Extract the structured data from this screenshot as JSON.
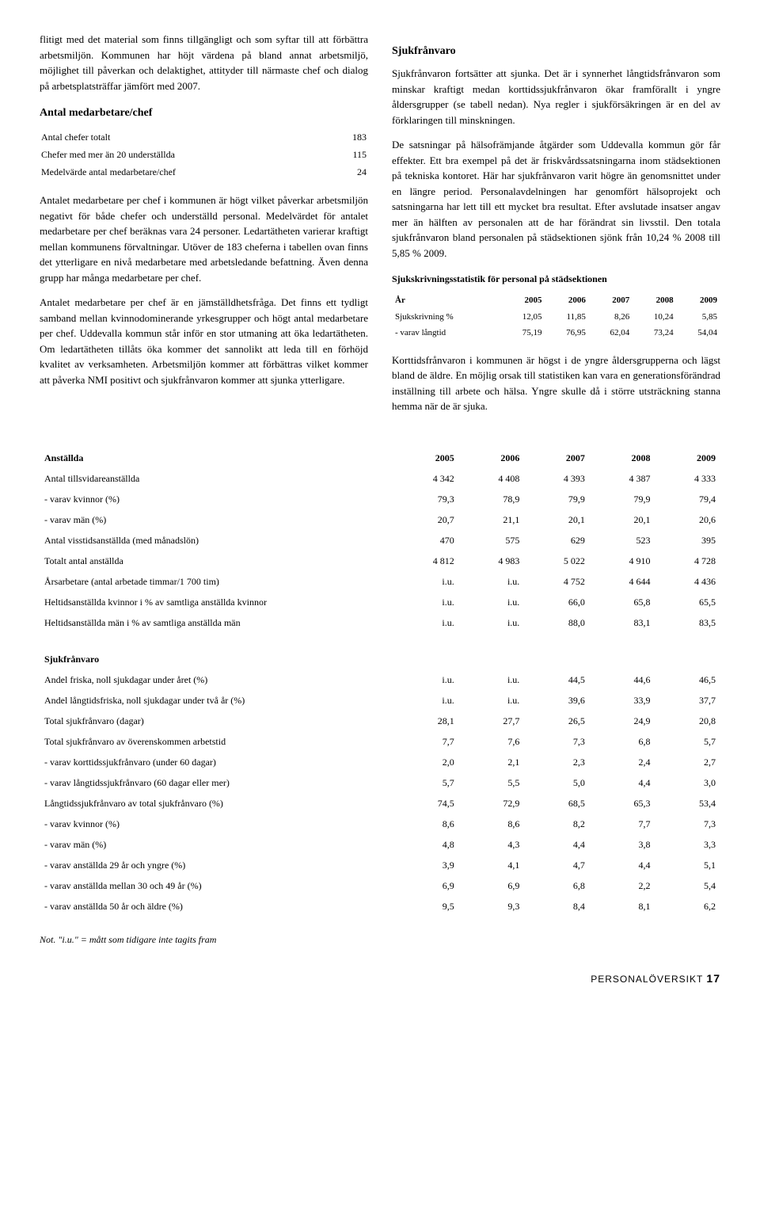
{
  "left": {
    "p1": "flitigt med det material som finns tillgängligt och som syftar till att förbättra arbetsmiljön. Kommunen har höjt värdena på bland annat arbetsmiljö, möjlighet till påverkan och delaktighet, attityder till närmaste chef och dialog på arbetsplatsträffar jämfört med 2007.",
    "h1": "Antal medarbetare/chef",
    "rows": [
      [
        "Antal chefer totalt",
        "183"
      ],
      [
        "Chefer med mer än 20 underställda",
        "115"
      ],
      [
        "Medelvärde antal medarbetare/chef",
        "24"
      ]
    ],
    "p2": "Antalet medarbetare per chef i kommunen är högt vilket påverkar arbetsmiljön negativt för både chefer och underställd personal. Medelvärdet för antalet medarbetare per chef beräknas vara 24 personer. Ledartätheten varierar kraftigt mellan kommunens förvaltningar. Utöver de 183 cheferna i tabellen ovan finns det ytterligare en nivå medarbetare med arbetsledande befattning. Även denna grupp har många medarbetare per chef.",
    "p3": "Antalet medarbetare per chef är en jämställdhetsfråga. Det finns ett tydligt samband mellan kvinnodominerande yrkesgrupper och högt antal medarbetare per chef. Uddevalla kommun står inför en stor utmaning att öka ledartätheten. Om ledartätheten tillåts öka kommer det sannolikt att leda till en förhöjd kvalitet av verksamheten. Arbetsmiljön kommer att förbättras vilket kommer att påverka NMI positivt och sjukfrånvaron kommer att sjunka ytterligare."
  },
  "right": {
    "h1": "Sjukfrånvaro",
    "p1": "Sjukfrånvaron fortsätter att sjunka. Det är i synnerhet långtidsfrånvaron som minskar kraftigt medan korttidssjukfrånvaron ökar framförallt i yngre åldersgrupper (se tabell nedan). Nya regler i sjukförsäkringen är en del av förklaringen till minskningen.",
    "p2": "De satsningar på hälsofrämjande åtgärder som Uddevalla kommun gör får effekter. Ett bra exempel på det är friskvårdssatsningarna inom städsektionen på tekniska kontoret. Här har sjukfrånvaron varit högre än genomsnittet under en längre period. Personalavdelningen har genomfört hälsoprojekt och satsningarna har lett till ett mycket bra resultat. Efter avslutade insatser angav mer än hälften av personalen att de har förändrat sin livsstil. Den totala sjukfrånvaron bland personalen på städsektionen sjönk från 10,24 % 2008 till 5,85 % 2009.",
    "h2": "Sjukskrivningsstatistik för personal på städsektionen",
    "stat_header": [
      "År",
      "2005",
      "2006",
      "2007",
      "2008",
      "2009"
    ],
    "stat_rows": [
      [
        "Sjukskrivning %",
        "12,05",
        "11,85",
        "8,26",
        "10,24",
        "5,85"
      ],
      [
        "- varav långtid",
        "75,19",
        "76,95",
        "62,04",
        "73,24",
        "54,04"
      ]
    ],
    "p3": "Korttidsfrånvaron i kommunen är högst i de yngre åldersgrupperna och lägst bland de äldre. En möjlig orsak till statistiken kan vara en generationsförändrad inställning till arbete och hälsa. Yngre skulle då i större utsträckning stanna hemma när de är sjuka."
  },
  "anstallda": {
    "title": "Anställda",
    "header": [
      "",
      "2005",
      "2006",
      "2007",
      "2008",
      "2009"
    ],
    "rows": [
      [
        "Antal tillsvidareanställda",
        "4 342",
        "4 408",
        "4 393",
        "4 387",
        "4 333"
      ],
      [
        "- varav kvinnor (%)",
        "79,3",
        "78,9",
        "79,9",
        "79,9",
        "79,4"
      ],
      [
        "- varav män (%)",
        "20,7",
        "21,1",
        "20,1",
        "20,1",
        "20,6"
      ],
      [
        "Antal visstidsanställda (med månadslön)",
        "470",
        "575",
        "629",
        "523",
        "395"
      ],
      [
        "Totalt antal anställda",
        "4 812",
        "4 983",
        "5 022",
        "4 910",
        "4 728"
      ],
      [
        "Årsarbetare (antal arbetade timmar/1 700 tim)",
        "i.u.",
        "i.u.",
        "4 752",
        "4 644",
        "4 436"
      ],
      [
        "Heltidsanställda kvinnor i % av samtliga anställda kvinnor",
        "i.u.",
        "i.u.",
        "66,0",
        "65,8",
        "65,5"
      ],
      [
        "Heltidsanställda män i % av samtliga anställda män",
        "i.u.",
        "i.u.",
        "88,0",
        "83,1",
        "83,5"
      ]
    ]
  },
  "sjuk": {
    "title": "Sjukfrånvaro",
    "rows": [
      [
        "Andel friska, noll sjukdagar under året (%)",
        "i.u.",
        "i.u.",
        "44,5",
        "44,6",
        "46,5"
      ],
      [
        "Andel långtidsfriska, noll sjukdagar under två år (%)",
        "i.u.",
        "i.u.",
        "39,6",
        "33,9",
        "37,7"
      ],
      [
        "Total sjukfrånvaro (dagar)",
        "28,1",
        "27,7",
        "26,5",
        "24,9",
        "20,8"
      ],
      [
        "Total sjukfrånvaro av överenskommen arbetstid",
        "7,7",
        "7,6",
        "7,3",
        "6,8",
        "5,7"
      ],
      [
        "- varav korttidssjukfrånvaro (under 60 dagar)",
        "2,0",
        "2,1",
        "2,3",
        "2,4",
        "2,7"
      ],
      [
        "- varav långtidssjukfrånvaro (60 dagar eller mer)",
        "5,7",
        "5,5",
        "5,0",
        "4,4",
        "3,0"
      ],
      [
        "Långtidssjukfrånvaro av total sjukfrånvaro (%)",
        "74,5",
        "72,9",
        "68,5",
        "65,3",
        "53,4"
      ],
      [
        "- varav kvinnor (%)",
        "8,6",
        "8,6",
        "8,2",
        "7,7",
        "7,3"
      ],
      [
        "- varav män (%)",
        "4,8",
        "4,3",
        "4,4",
        "3,8",
        "3,3"
      ],
      [
        "- varav anställda 29 år och yngre (%)",
        "3,9",
        "4,1",
        "4,7",
        "4,4",
        "5,1"
      ],
      [
        "- varav anställda mellan 30 och 49 år (%)",
        "6,9",
        "6,9",
        "6,8",
        "2,2",
        "5,4"
      ],
      [
        "- varav anställda 50 år och äldre (%)",
        "9,5",
        "9,3",
        "8,4",
        "8,1",
        "6,2"
      ]
    ]
  },
  "footnote": "Not. \"i.u.\" = mått som tidigare inte tagits fram",
  "footer_label": "PERSONALÖVERSIKT",
  "footer_page": "17"
}
